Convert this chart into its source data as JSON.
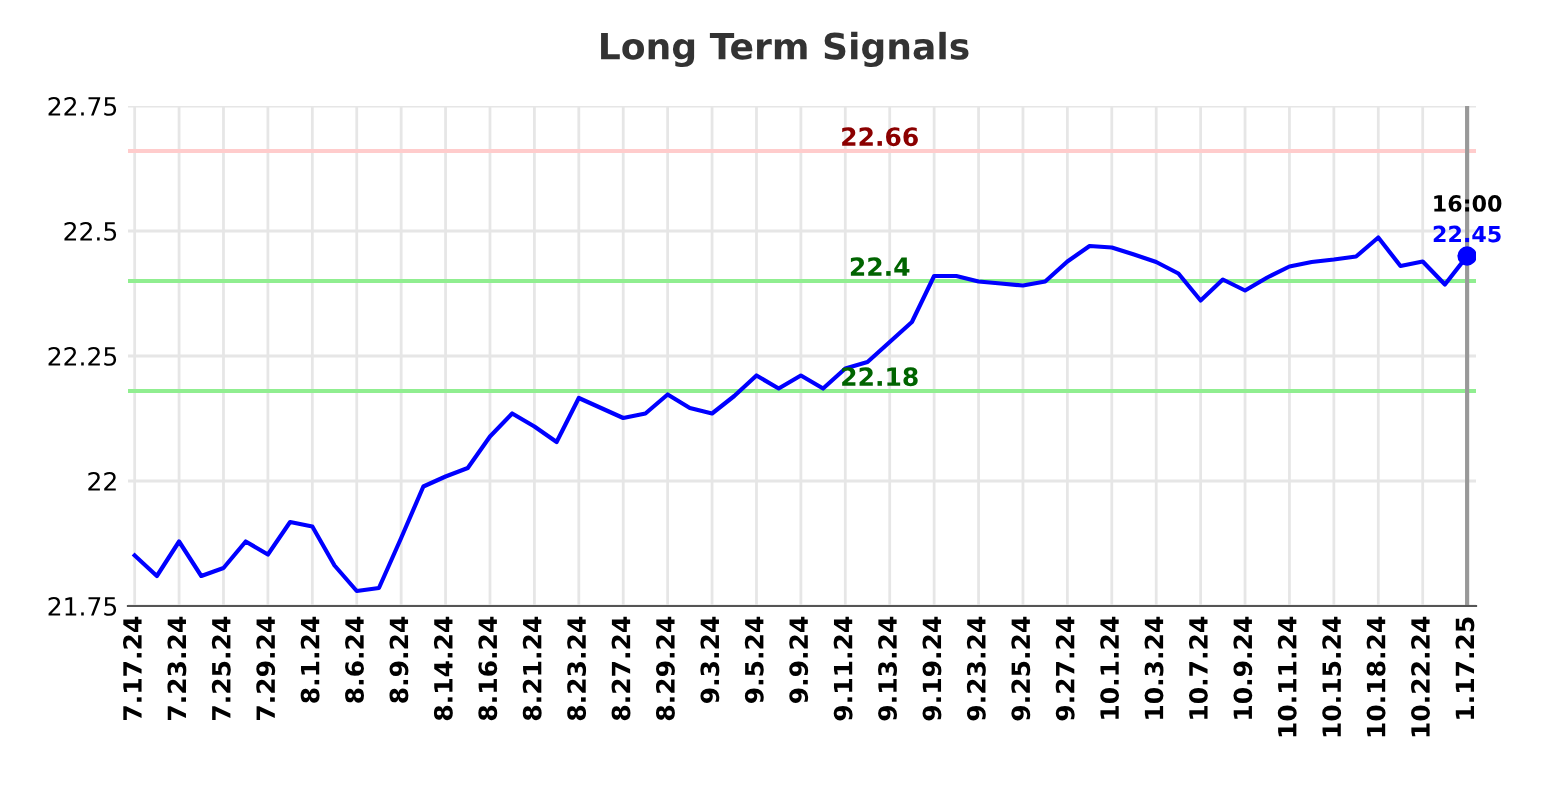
{
  "chart_data": {
    "type": "line",
    "title": "Long Term Signals",
    "categories": [
      "7.17.24",
      null,
      "7.23.24",
      null,
      "7.25.24",
      null,
      "7.29.24",
      null,
      "8.1.24",
      null,
      "8.6.24",
      null,
      "8.9.24",
      null,
      "8.14.24",
      null,
      "8.16.24",
      null,
      "8.21.24",
      null,
      "8.23.24",
      null,
      "8.27.24",
      null,
      "8.29.24",
      null,
      "9.3.24",
      null,
      "9.5.24",
      null,
      "9.9.24",
      null,
      "9.11.24",
      null,
      "9.13.24",
      null,
      "9.19.24",
      null,
      "9.23.24",
      null,
      "9.25.24",
      null,
      "9.27.24",
      null,
      "10.1.24",
      null,
      "10.3.24",
      null,
      "10.7.24",
      null,
      "10.9.24",
      null,
      "10.11.24",
      null,
      "10.15.24",
      null,
      "10.18.24",
      null,
      "10.22.24",
      null,
      "1.17.25"
    ],
    "series": [
      {
        "color": "#0000ff",
        "values": [
          21.851,
          21.81,
          21.879,
          21.81,
          21.826,
          21.879,
          21.853,
          21.918,
          21.909,
          21.831,
          21.78,
          21.786,
          21.886,
          21.989,
          22.009,
          22.026,
          22.089,
          22.135,
          22.109,
          22.078,
          22.166,
          22.146,
          22.126,
          22.135,
          22.173,
          22.146,
          22.135,
          22.17,
          22.211,
          22.185,
          22.211,
          22.185,
          22.225,
          22.238,
          22.278,
          22.318,
          22.41,
          22.41,
          22.399,
          22.395,
          22.391,
          22.399,
          22.439,
          22.47,
          22.467,
          22.453,
          22.438,
          22.415,
          22.361,
          22.403,
          22.381,
          22.407,
          22.429,
          22.438,
          22.443,
          22.449,
          22.487,
          22.43,
          22.439,
          22.393,
          22.45
        ]
      }
    ],
    "ylim": [
      21.75,
      22.75
    ],
    "yticks": [
      21.75,
      22,
      22.25,
      22.5,
      22.75
    ],
    "grid": true,
    "ref_lines": [
      {
        "axis": "y",
        "value": 22.66,
        "label": "22.66",
        "color": "#ffcccc"
      },
      {
        "axis": "y",
        "value": 22.4,
        "label": "22.4",
        "color": "#90ee90"
      },
      {
        "axis": "y",
        "value": 22.18,
        "label": "22.18",
        "color": "#90ee90"
      },
      {
        "axis": "x",
        "value": "1.17.25",
        "color": "#999999"
      }
    ],
    "annotations": [
      {
        "text": "16:00",
        "x": "1.17.25",
        "y": 22.45
      },
      {
        "text": "22.45",
        "x": "1.17.25",
        "y": 22.45
      }
    ]
  }
}
